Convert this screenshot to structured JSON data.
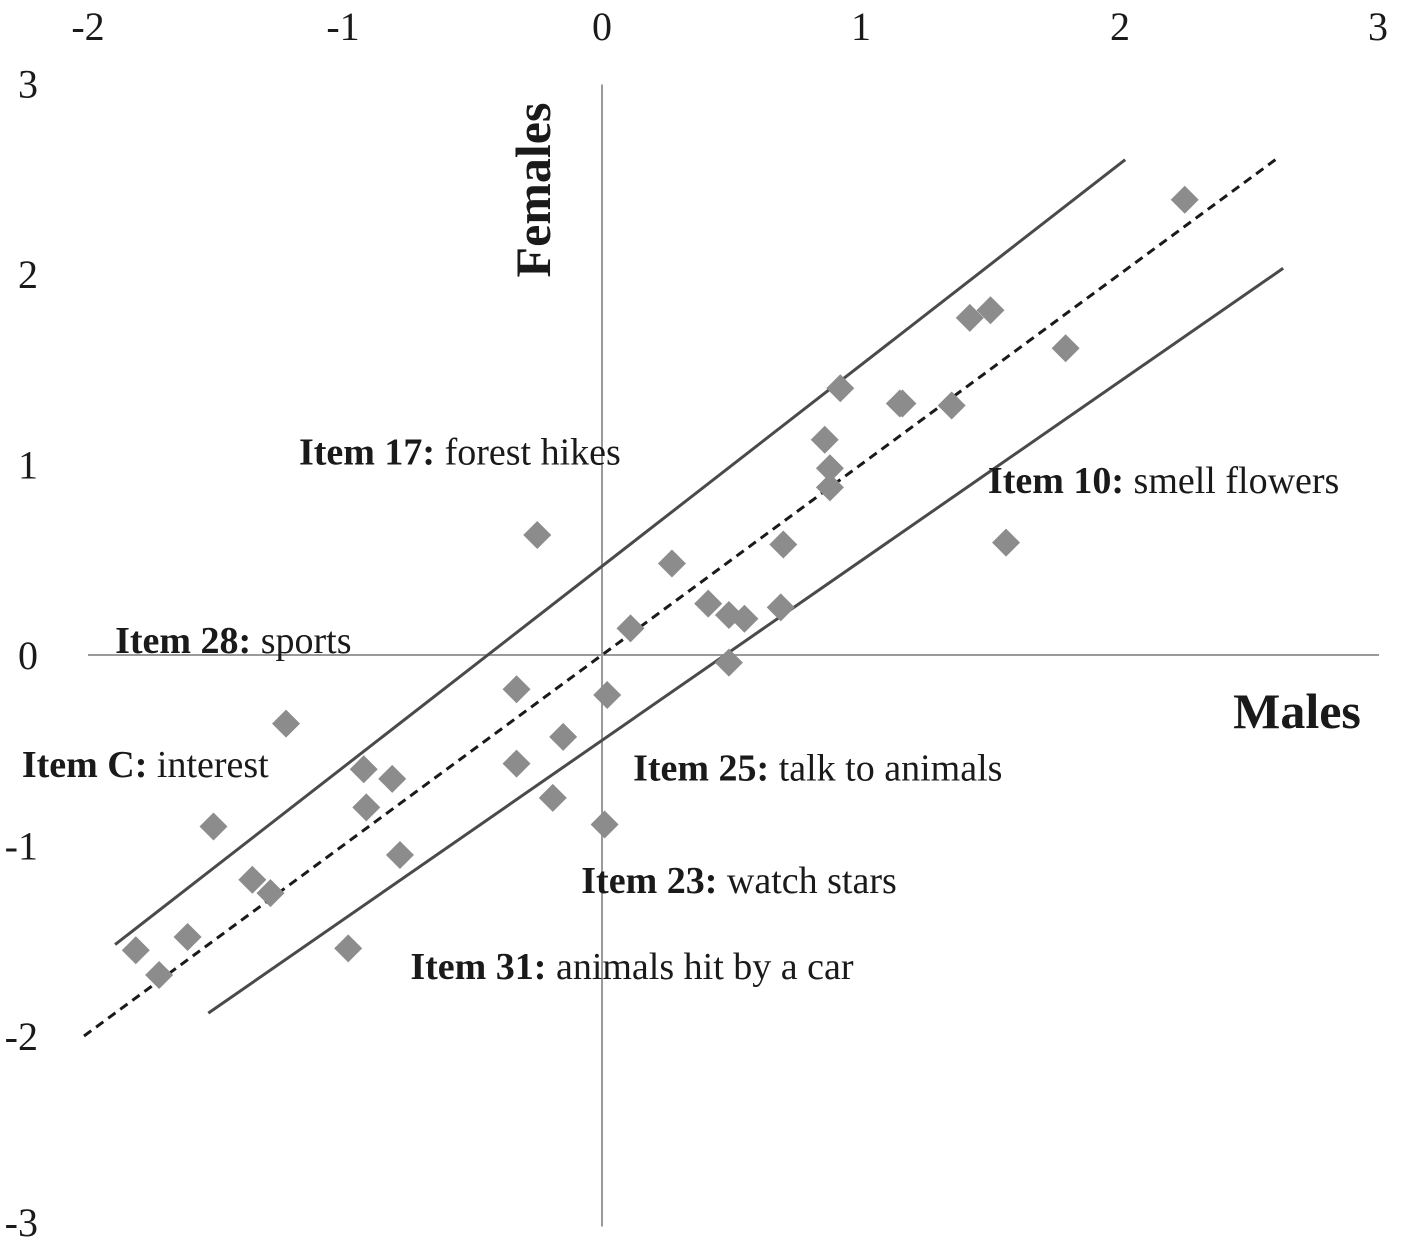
{
  "chart_data": {
    "type": "scatter",
    "xlabel": "Males",
    "ylabel": "Females",
    "xlim": [
      -2,
      3
    ],
    "ylim": [
      -3,
      3
    ],
    "x_ticks": [
      "-2",
      "-1",
      "0",
      "1",
      "2",
      "3"
    ],
    "y_ticks": [
      "3",
      "2",
      "1",
      "0",
      "-1",
      "-2",
      "-3"
    ],
    "grid": false,
    "legend": "none",
    "marker": "diamond",
    "marker_color": "#8c8c8c",
    "line_color": "#4a4a4a",
    "points": [
      {
        "x": -1.8,
        "y": -1.55
      },
      {
        "x": -1.71,
        "y": -1.68
      },
      {
        "x": -1.6,
        "y": -1.48
      },
      {
        "x": -1.5,
        "y": -0.9
      },
      {
        "x": -1.35,
        "y": -1.18
      },
      {
        "x": -1.28,
        "y": -1.25
      },
      {
        "x": -1.22,
        "y": -0.36
      },
      {
        "x": -0.98,
        "y": -1.54
      },
      {
        "x": -0.92,
        "y": -0.6
      },
      {
        "x": -0.91,
        "y": -0.8
      },
      {
        "x": -0.81,
        "y": -0.65
      },
      {
        "x": -0.78,
        "y": -1.05
      },
      {
        "x": -0.33,
        "y": -0.18
      },
      {
        "x": -0.33,
        "y": -0.57
      },
      {
        "x": -0.25,
        "y": 0.63
      },
      {
        "x": -0.19,
        "y": -0.75
      },
      {
        "x": -0.15,
        "y": -0.43
      },
      {
        "x": 0.02,
        "y": -0.21
      },
      {
        "x": 0.01,
        "y": -0.89
      },
      {
        "x": 0.11,
        "y": 0.14
      },
      {
        "x": 0.27,
        "y": 0.48
      },
      {
        "x": 0.41,
        "y": 0.27
      },
      {
        "x": 0.49,
        "y": 0.21
      },
      {
        "x": 0.49,
        "y": -0.04
      },
      {
        "x": 0.55,
        "y": 0.19
      },
      {
        "x": 0.69,
        "y": 0.25
      },
      {
        "x": 0.7,
        "y": 0.58
      },
      {
        "x": 0.86,
        "y": 1.13
      },
      {
        "x": 0.88,
        "y": 0.88
      },
      {
        "x": 0.88,
        "y": 0.98
      },
      {
        "x": 0.92,
        "y": 1.4
      },
      {
        "x": 1.15,
        "y": 1.32
      },
      {
        "x": 1.16,
        "y": 1.32
      },
      {
        "x": 1.35,
        "y": 1.31
      },
      {
        "x": 1.42,
        "y": 1.77
      },
      {
        "x": 1.5,
        "y": 1.81
      },
      {
        "x": 1.56,
        "y": 0.59
      },
      {
        "x": 1.79,
        "y": 1.61
      },
      {
        "x": 2.25,
        "y": 2.39
      }
    ],
    "lines": [
      {
        "style": "dashed",
        "x": [
          -2,
          2.6
        ],
        "y": [
          -2,
          2.6
        ]
      },
      {
        "style": "solid",
        "x": [
          -1.88,
          2.02
        ],
        "y": [
          -1.52,
          2.6
        ]
      },
      {
        "style": "solid",
        "x": [
          -1.52,
          2.63
        ],
        "y": [
          -1.88,
          2.03
        ]
      }
    ],
    "annotations": [
      {
        "bold": "Item 17:",
        "text": " forest hikes",
        "at": [
          -1.17,
          1.0
        ]
      },
      {
        "bold": "Item 10:",
        "text": " smell flowers",
        "at": [
          1.49,
          0.85
        ]
      },
      {
        "bold": "Item 28:",
        "text": " sports",
        "at": [
          -1.88,
          0.01
        ]
      },
      {
        "bold": "Item C:",
        "text": " interest",
        "at": [
          -2.24,
          -0.64
        ]
      },
      {
        "bold": "Item 25:",
        "text": " talk to animals",
        "at": [
          0.12,
          -0.66
        ]
      },
      {
        "bold": "Item 23:",
        "text": " watch stars",
        "at": [
          -0.08,
          -1.25
        ]
      },
      {
        "bold": "Item 31:",
        "text": " animals hit by a car",
        "at": [
          -0.74,
          -1.7
        ]
      }
    ]
  }
}
